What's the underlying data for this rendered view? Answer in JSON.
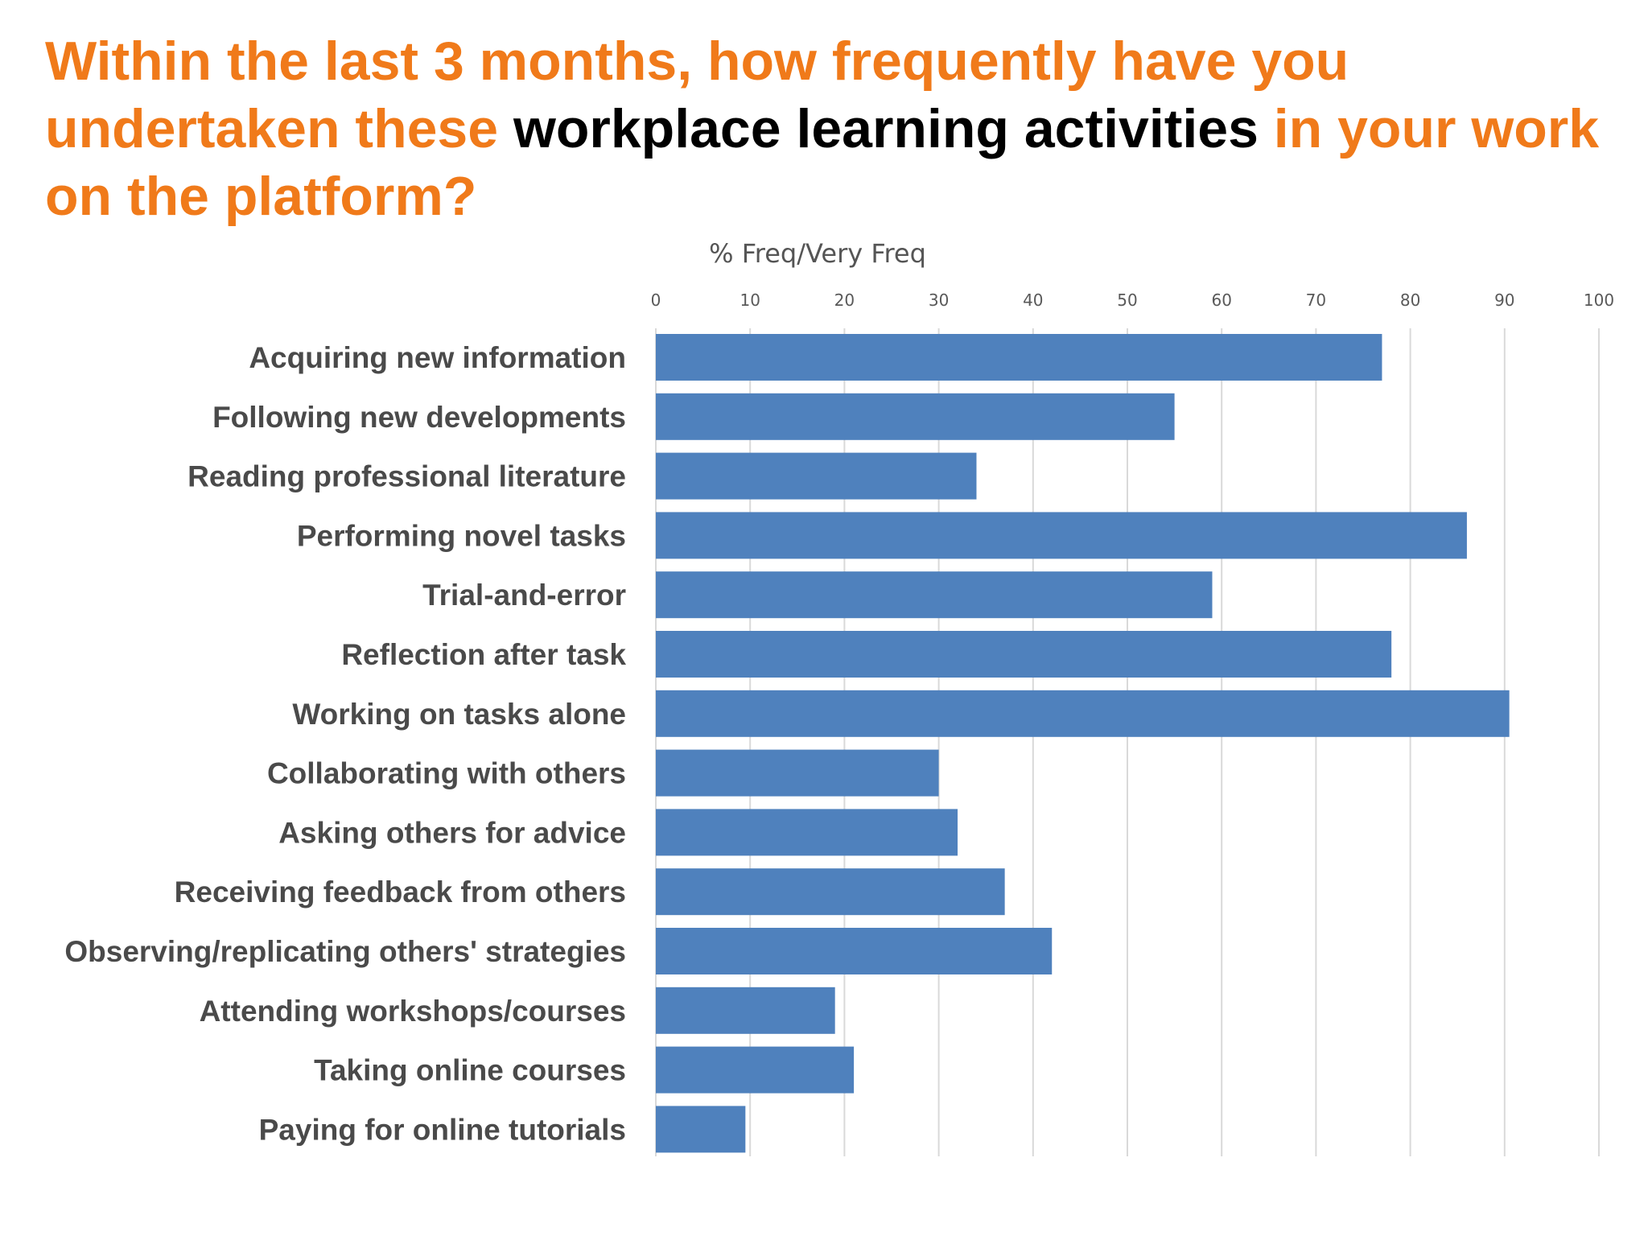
{
  "slide": {
    "title_part1": "Within the last 3 months, how frequently have you undertaken these ",
    "title_highlight": "workplace learning activities",
    "title_part2": " in your work on the platform?",
    "accent_color": "#F07A1A",
    "highlight_color": "#000000"
  },
  "chart_data": {
    "type": "bar",
    "orientation": "horizontal",
    "xlabel": "% Freq/Very Freq",
    "xlim": [
      0,
      100
    ],
    "ticks": [
      0,
      10,
      20,
      30,
      40,
      50,
      60,
      70,
      80,
      90,
      100
    ],
    "axis_position": "top",
    "grid": true,
    "bar_color": "#4F81BD",
    "categories": [
      "Acquiring new information",
      "Following new developments",
      "Reading professional literature",
      "Performing novel tasks",
      "Trial-and-error",
      "Reflection after task",
      "Working on tasks alone",
      "Collaborating with others",
      "Asking others for advice",
      "Receiving feedback from others",
      "Observing/replicating others' strategies",
      "Attending workshops/courses",
      "Taking online courses",
      "Paying for online tutorials"
    ],
    "values": [
      77,
      55,
      34,
      86,
      59,
      78,
      90.5,
      30,
      32,
      37,
      42,
      19,
      21,
      9.5
    ]
  }
}
